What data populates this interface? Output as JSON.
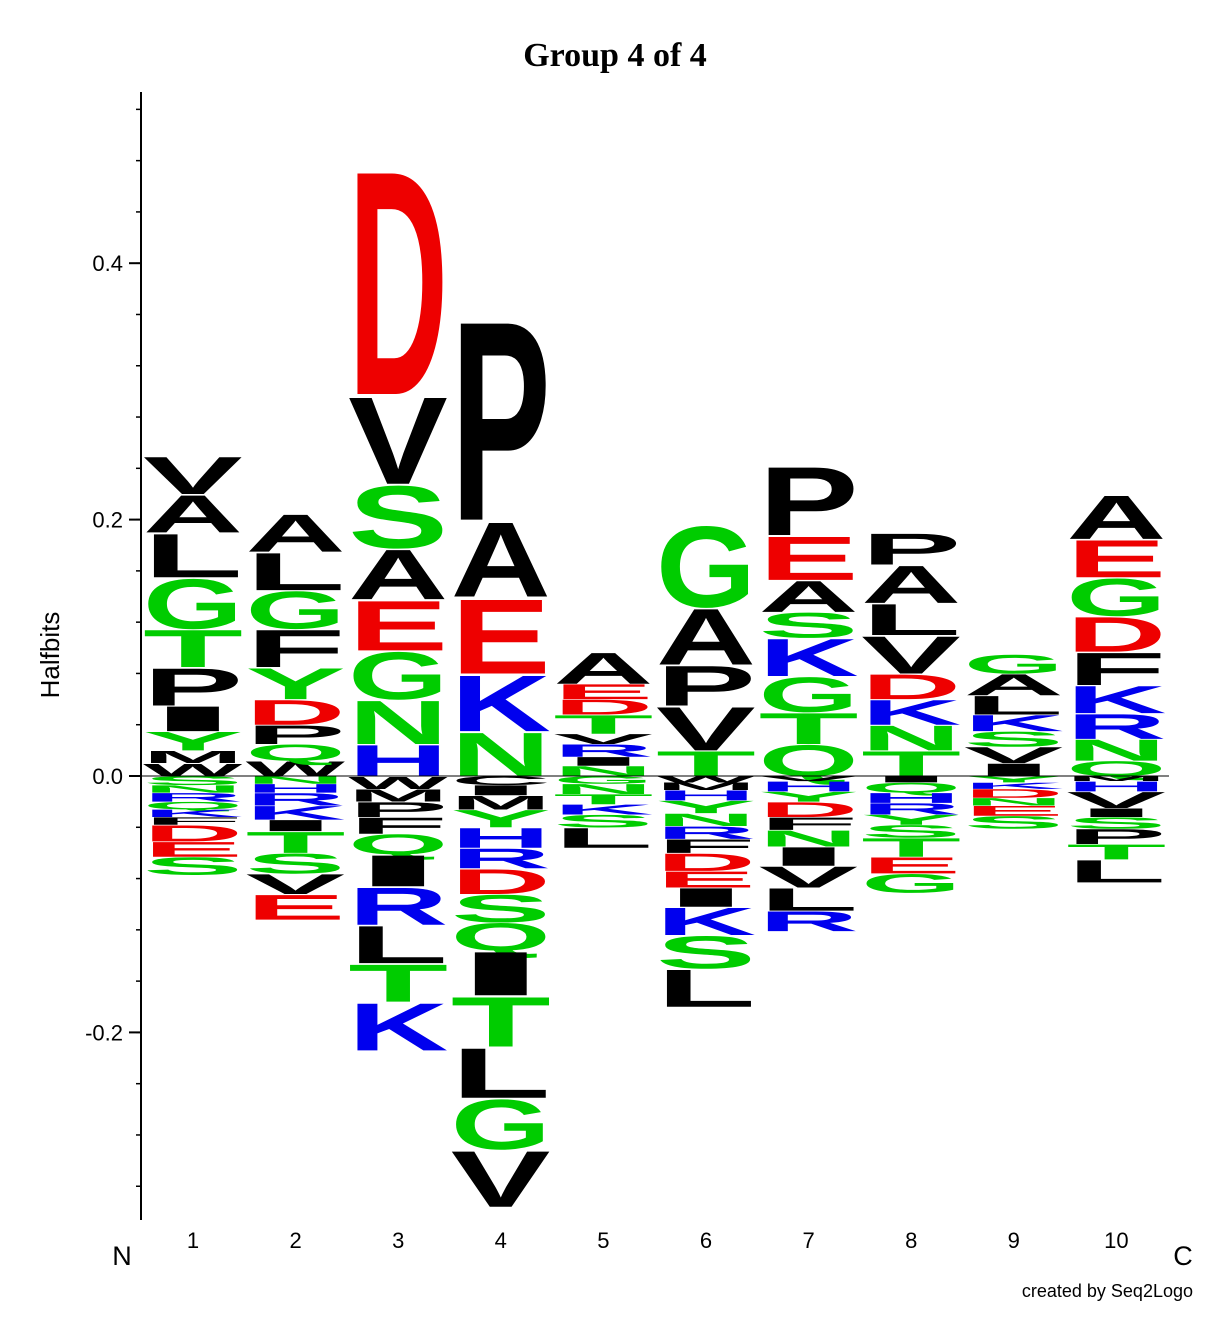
{
  "chart_data": {
    "type": "sequence-logo",
    "title": "Group 4 of 4",
    "ylabel": "Halfbits",
    "ylim": [
      -0.35,
      0.53
    ],
    "yticks_major": [
      -0.2,
      0.0,
      0.2,
      0.4
    ],
    "ytick_labels": [
      "-0.2",
      "0.0",
      "0.2",
      "0.4"
    ],
    "yticks_minor_step": 0.04,
    "n_label": "N",
    "c_label": "C",
    "credit": "created by Seq2Logo",
    "colors": {
      "A": "#000000",
      "V": "#000000",
      "L": "#000000",
      "I": "#000000",
      "P": "#000000",
      "F": "#000000",
      "M": "#000000",
      "W": "#000000",
      "C": "#000000",
      "G": "#00cc00",
      "S": "#00cc00",
      "T": "#00cc00",
      "Y": "#00cc00",
      "Q": "#00cc00",
      "N": "#00cc00",
      "K": "#0000ee",
      "R": "#0000ee",
      "H": "#0000ee",
      "D": "#ee0000",
      "E": "#ee0000"
    },
    "positions": [
      {
        "label": "1",
        "pos": [
          [
            "W",
            0.01
          ],
          [
            "M",
            0.01
          ],
          [
            "Y",
            0.015
          ],
          [
            "I",
            0.02
          ],
          [
            "P",
            0.03
          ],
          [
            "T",
            0.03
          ],
          [
            "G",
            0.04
          ],
          [
            "L",
            0.035
          ],
          [
            "A",
            0.03
          ],
          [
            "V",
            0.03
          ]
        ],
        "neg": [
          [
            "S",
            0.007
          ],
          [
            "N",
            0.006
          ],
          [
            "R",
            0.007
          ],
          [
            "Q",
            0.006
          ],
          [
            "K",
            0.006
          ],
          [
            "F",
            0.006
          ],
          [
            "D",
            0.013
          ],
          [
            "E",
            0.012
          ],
          [
            "S",
            0.014
          ]
        ]
      },
      {
        "label": "2",
        "pos": [
          [
            "W",
            0.012
          ],
          [
            "Q",
            0.013
          ],
          [
            "P",
            0.015
          ],
          [
            "D",
            0.02
          ],
          [
            "Y",
            0.025
          ],
          [
            "F",
            0.03
          ],
          [
            "G",
            0.03
          ],
          [
            "L",
            0.03
          ],
          [
            "A",
            0.03
          ]
        ],
        "neg": [
          [
            "N",
            0.006
          ],
          [
            "H",
            0.007
          ],
          [
            "R",
            0.01
          ],
          [
            "K",
            0.011
          ],
          [
            "I",
            0.009
          ],
          [
            "T",
            0.017
          ],
          [
            "S",
            0.016
          ],
          [
            "V",
            0.016
          ],
          [
            "E",
            0.02
          ]
        ]
      },
      {
        "label": "3",
        "pos": [
          [
            "H",
            0.025
          ],
          [
            "N",
            0.035
          ],
          [
            "G",
            0.038
          ],
          [
            "E",
            0.04
          ],
          [
            "A",
            0.04
          ],
          [
            "S",
            0.05
          ],
          [
            "V",
            0.07
          ],
          [
            "D",
            0.18
          ]
        ],
        "neg": [
          [
            "W",
            0.01
          ],
          [
            "M",
            0.01
          ],
          [
            "P",
            0.012
          ],
          [
            "F",
            0.013
          ],
          [
            "Q",
            0.016
          ],
          [
            "I",
            0.025
          ],
          [
            "R",
            0.03
          ],
          [
            "L",
            0.03
          ],
          [
            "T",
            0.03
          ],
          [
            "K",
            0.038
          ]
        ]
      },
      {
        "label": "4",
        "pos": [
          [
            "N",
            0.035
          ],
          [
            "K",
            0.045
          ],
          [
            "E",
            0.06
          ],
          [
            "A",
            0.06
          ],
          [
            "P",
            0.16
          ]
        ],
        "neg": [
          [
            "C",
            0.007
          ],
          [
            "I",
            0.008
          ],
          [
            "M",
            0.011
          ],
          [
            "Y",
            0.014
          ],
          [
            "H",
            0.016
          ],
          [
            "R",
            0.016
          ],
          [
            "D",
            0.02
          ],
          [
            "S",
            0.022
          ],
          [
            "Q",
            0.022
          ],
          [
            "I",
            0.035
          ],
          [
            "T",
            0.04
          ],
          [
            "L",
            0.04
          ],
          [
            "G",
            0.04
          ],
          [
            "V",
            0.045
          ]
        ]
      },
      {
        "label": "5",
        "pos": [
          [
            "N",
            0.008
          ],
          [
            "I",
            0.007
          ],
          [
            "R",
            0.01
          ],
          [
            "V",
            0.008
          ],
          [
            "T",
            0.015
          ],
          [
            "D",
            0.012
          ],
          [
            "E",
            0.012
          ],
          [
            "A",
            0.025
          ]
        ],
        "neg": [
          [
            "G",
            0.006
          ],
          [
            "N",
            0.008
          ],
          [
            "T",
            0.008
          ],
          [
            "K",
            0.008
          ],
          [
            "S",
            0.01
          ],
          [
            "L",
            0.016
          ]
        ]
      },
      {
        "label": "6",
        "pos": [
          [
            "T",
            0.02
          ],
          [
            "V",
            0.035
          ],
          [
            "P",
            0.032
          ],
          [
            "A",
            0.045
          ],
          [
            "G",
            0.065
          ]
        ],
        "neg": [
          [
            "W",
            0.005
          ],
          [
            "M",
            0.006
          ],
          [
            "H",
            0.008
          ],
          [
            "Y",
            0.01
          ],
          [
            "N",
            0.01
          ],
          [
            "R",
            0.01
          ],
          [
            "F",
            0.011
          ],
          [
            "D",
            0.014
          ],
          [
            "E",
            0.013
          ],
          [
            "I",
            0.015
          ],
          [
            "K",
            0.022
          ],
          [
            "S",
            0.026
          ],
          [
            "L",
            0.03
          ]
        ]
      },
      {
        "label": "7",
        "pos": [
          [
            "Q",
            0.025
          ],
          [
            "T",
            0.025
          ],
          [
            "G",
            0.028
          ],
          [
            "K",
            0.03
          ],
          [
            "S",
            0.02
          ],
          [
            "A",
            0.025
          ],
          [
            "E",
            0.035
          ],
          [
            "P",
            0.055
          ]
        ],
        "neg": [
          [
            "V",
            0.004
          ],
          [
            "H",
            0.008
          ],
          [
            "Y",
            0.008
          ],
          [
            "D",
            0.012
          ],
          [
            "F",
            0.01
          ],
          [
            "N",
            0.013
          ],
          [
            "I",
            0.015
          ],
          [
            "V",
            0.017
          ],
          [
            "L",
            0.018
          ],
          [
            "R",
            0.016
          ]
        ]
      },
      {
        "label": "8",
        "pos": [
          [
            "T",
            0.02
          ],
          [
            "N",
            0.02
          ],
          [
            "K",
            0.02
          ],
          [
            "D",
            0.02
          ],
          [
            "V",
            0.03
          ],
          [
            "L",
            0.025
          ],
          [
            "A",
            0.03
          ],
          [
            "P",
            0.025
          ]
        ],
        "neg": [
          [
            "I",
            0.005
          ],
          [
            "Q",
            0.008
          ],
          [
            "H",
            0.008
          ],
          [
            "R",
            0.009
          ],
          [
            "Y",
            0.008
          ],
          [
            "S",
            0.01
          ],
          [
            "T",
            0.015
          ],
          [
            "E",
            0.013
          ],
          [
            "G",
            0.015
          ]
        ]
      },
      {
        "label": "9",
        "pos": [
          [
            "I",
            0.01
          ],
          [
            "V",
            0.013
          ],
          [
            "S",
            0.012
          ],
          [
            "K",
            0.013
          ],
          [
            "L",
            0.015
          ],
          [
            "A",
            0.017
          ],
          [
            "G",
            0.015
          ]
        ],
        "neg": [
          [
            "Y",
            0.005
          ],
          [
            "K",
            0.005
          ],
          [
            "D",
            0.007
          ],
          [
            "N",
            0.006
          ],
          [
            "E",
            0.008
          ],
          [
            "S",
            0.01
          ]
        ]
      },
      {
        "label": "10",
        "pos": [
          [
            "Q",
            0.012
          ],
          [
            "N",
            0.017
          ],
          [
            "R",
            0.02
          ],
          [
            "K",
            0.022
          ],
          [
            "F",
            0.026
          ],
          [
            "D",
            0.028
          ],
          [
            "G",
            0.03
          ],
          [
            "E",
            0.03
          ],
          [
            "A",
            0.035
          ]
        ],
        "neg": [
          [
            "M",
            0.004
          ],
          [
            "H",
            0.008
          ],
          [
            "V",
            0.013
          ],
          [
            "I",
            0.007
          ],
          [
            "S",
            0.009
          ],
          [
            "P",
            0.012
          ],
          [
            "T",
            0.012
          ],
          [
            "L",
            0.018
          ]
        ]
      }
    ]
  }
}
